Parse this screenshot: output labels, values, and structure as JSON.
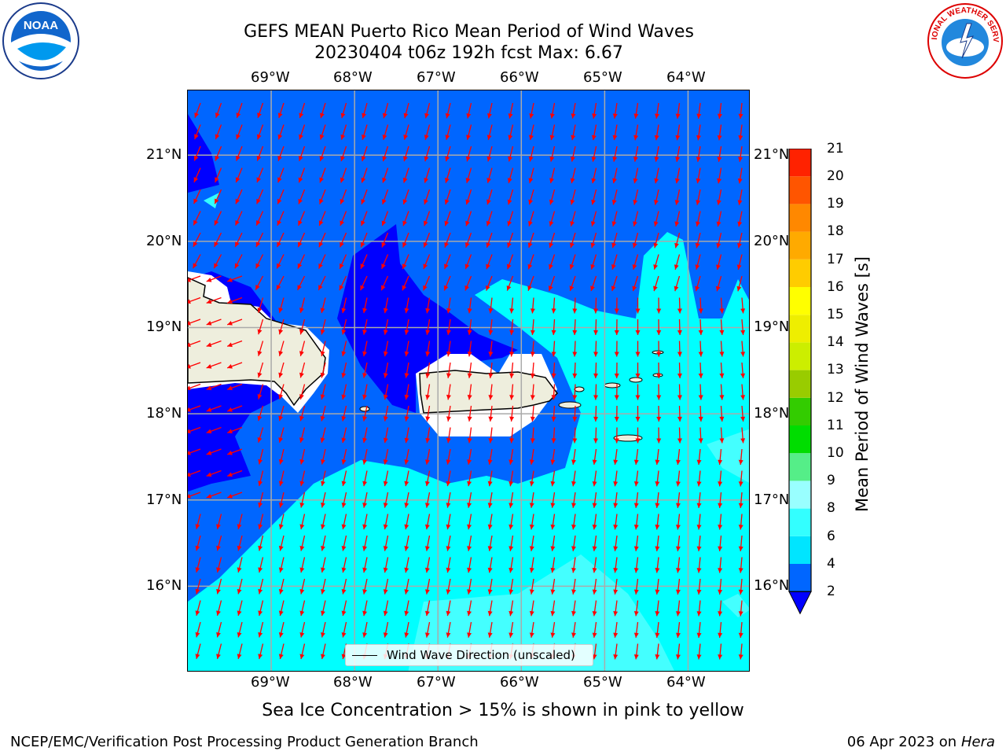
{
  "title_line1": "GEFS MEAN Puerto Rico Mean Period of Wind Waves",
  "title_line2": "20230404 t06z 192h fcst   Max: 6.67",
  "logos": {
    "left": "noaa-logo",
    "right": "nws-logo",
    "left_text": "NOAA",
    "right_text": "NATIONAL WEATHER SERVICE"
  },
  "map": {
    "lon_ticks": [
      "69°W",
      "68°W",
      "67°W",
      "66°W",
      "65°W",
      "64°W"
    ],
    "lat_ticks": [
      "21°N",
      "20°N",
      "19°N",
      "18°N",
      "17°N",
      "16°N"
    ],
    "lon_values": [
      -69,
      -68,
      -67,
      -66,
      -65,
      -64
    ],
    "lat_values": [
      21,
      20,
      19,
      18,
      17,
      16
    ],
    "extent": {
      "lon_min": -70,
      "lon_max": -63.25,
      "lat_min": 15,
      "lat_max": 21.75
    },
    "land_color": "#eeeedd",
    "arrow_color": "#ff0000",
    "legend_label": "Wind Wave Direction (unscaled)"
  },
  "colorbar": {
    "label": "Mean Period of Wind Waves [s]",
    "levels": [
      "2",
      "4",
      "6",
      "8",
      "9",
      "10",
      "11",
      "12",
      "13",
      "14",
      "15",
      "16",
      "17",
      "18",
      "19",
      "20",
      "21"
    ],
    "colors": [
      "#0066ff",
      "#00e5ff",
      "#33ffff",
      "#99ffff",
      "#55ee88",
      "#00dd00",
      "#33cc00",
      "#99cc00",
      "#ccee00",
      "#eeee00",
      "#ffff00",
      "#ffcc00",
      "#ffaa00",
      "#ff8800",
      "#ff5500",
      "#ff2200"
    ],
    "under_color": "#0000ff"
  },
  "caption": "Sea Ice Concentration > 15% is shown in pink to yellow",
  "footer_left": "NCEP/EMC/Verification Post Processing Product Generation Branch",
  "footer_date": "06 Apr 2023 on ",
  "footer_host": "Hera"
}
